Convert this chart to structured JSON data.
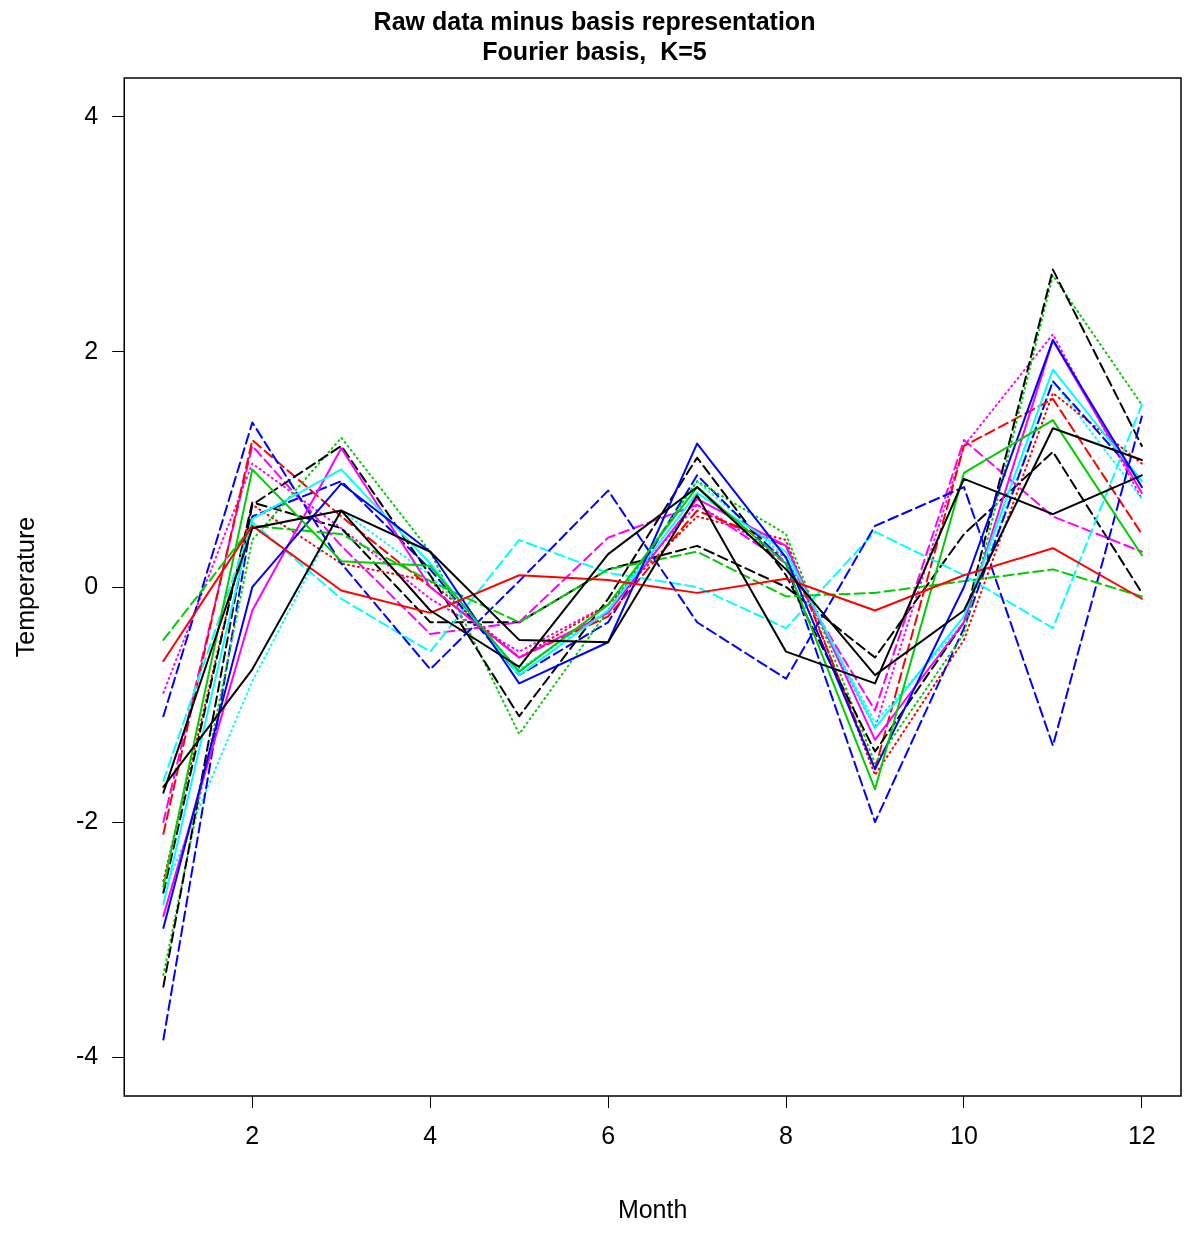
{
  "chart_data": {
    "type": "line",
    "title": "Raw data minus basis representation",
    "subtitle": "Fourier basis,  K=5",
    "xlabel": "Month",
    "ylabel": "Temperature",
    "x": [
      1,
      2,
      3,
      4,
      5,
      6,
      7,
      8,
      9,
      10,
      11,
      12
    ],
    "xlim": [
      0.56,
      12.44
    ],
    "xticks": [
      2,
      4,
      6,
      8,
      10,
      12
    ],
    "ylim": [
      -4.33,
      4.33
    ],
    "yticks": [
      -4,
      -2,
      0,
      2,
      4
    ],
    "grid": false,
    "legend": false,
    "marker": "none",
    "series": [
      {
        "color": "#000000",
        "line_style": "solid",
        "values": [
          -1.75,
          0.5,
          0.65,
          0.3,
          -0.45,
          -0.47,
          0.78,
          -0.55,
          -0.82,
          0.92,
          0.62,
          0.95
        ]
      },
      {
        "color": "#000000",
        "line_style": "solid",
        "values": [
          -1.7,
          -0.7,
          0.65,
          -0.2,
          -0.68,
          0.28,
          0.85,
          0.15,
          -0.75,
          -0.2,
          1.35,
          1.08
        ]
      },
      {
        "color": "#ff0000",
        "line_style": "solid",
        "values": [
          -0.63,
          0.52,
          -0.03,
          -0.22,
          0.1,
          0.06,
          -0.05,
          0.07,
          -0.2,
          0.1,
          0.33,
          -0.1
        ]
      },
      {
        "color": "#00cd00",
        "line_style": "solid",
        "values": [
          -2.55,
          1.0,
          0.22,
          0.18,
          -0.72,
          -0.15,
          0.85,
          0.2,
          -1.72,
          0.97,
          1.42,
          0.27
        ]
      },
      {
        "color": "#0000ff",
        "line_style": "solid",
        "values": [
          -2.9,
          0.0,
          0.88,
          0.3,
          -0.82,
          -0.47,
          1.22,
          0.25,
          -1.55,
          0.0,
          2.1,
          0.85
        ]
      },
      {
        "color": "#00ffff",
        "line_style": "solid",
        "values": [
          -2.7,
          0.58,
          1.0,
          0.2,
          -0.75,
          -0.2,
          0.8,
          0.3,
          -1.2,
          -0.25,
          1.85,
          0.9
        ]
      },
      {
        "color": "#ff00ff",
        "line_style": "solid",
        "values": [
          -2.8,
          -0.2,
          1.18,
          0.0,
          -0.6,
          -0.22,
          0.75,
          0.35,
          -1.3,
          -0.3,
          2.1,
          0.8
        ]
      },
      {
        "color": "#00cd00",
        "line_style": "dashed",
        "values": [
          -0.45,
          0.52,
          0.45,
          0.05,
          -0.3,
          0.15,
          0.3,
          -0.08,
          -0.05,
          0.05,
          0.15,
          -0.08
        ]
      },
      {
        "color": "#0000ff",
        "line_style": "dashed",
        "values": [
          -1.1,
          1.4,
          0.2,
          -0.7,
          0.05,
          0.82,
          -0.3,
          -0.78,
          0.52,
          0.85,
          -1.35,
          1.45
        ]
      },
      {
        "color": "#00ffff",
        "line_style": "dashed",
        "values": [
          -1.65,
          0.55,
          -0.1,
          -0.55,
          0.4,
          0.12,
          0.0,
          -0.35,
          0.47,
          0.1,
          -0.35,
          1.55
        ]
      },
      {
        "color": "#000000",
        "line_style": "dashed",
        "values": [
          -3.4,
          0.7,
          1.2,
          0.1,
          -1.1,
          -0.1,
          1.1,
          0.1,
          -1.4,
          -0.3,
          2.7,
          1.2
        ]
      },
      {
        "color": "#00cd00",
        "line_style": "dotted",
        "values": [
          -3.3,
          0.4,
          1.27,
          0.3,
          -1.25,
          -0.2,
          0.9,
          0.45,
          -1.5,
          -0.4,
          2.65,
          1.55
        ]
      },
      {
        "color": "#ff0000",
        "line_style": "dashed",
        "values": [
          -2.1,
          1.25,
          0.6,
          0.0,
          -0.6,
          -0.25,
          0.65,
          0.35,
          -1.55,
          1.2,
          1.6,
          0.45
        ]
      },
      {
        "color": "#ff00ff",
        "line_style": "dashed",
        "values": [
          -2.0,
          1.2,
          0.35,
          -0.4,
          -0.3,
          0.42,
          0.7,
          0.2,
          -1.05,
          1.25,
          0.6,
          0.3
        ]
      },
      {
        "color": "#0000ff",
        "line_style": "dashed",
        "values": [
          -3.85,
          0.6,
          0.9,
          0.15,
          -0.75,
          -0.3,
          0.95,
          0.2,
          -2.0,
          -0.35,
          1.75,
          0.9
        ]
      },
      {
        "color": "#000000",
        "line_style": "dashed",
        "values": [
          -2.6,
          0.72,
          0.5,
          -0.3,
          -0.3,
          0.15,
          0.35,
          0.0,
          -0.6,
          0.45,
          1.15,
          -0.05
        ]
      },
      {
        "color": "#ff0000",
        "line_style": "dotted",
        "values": [
          -2.5,
          0.7,
          0.2,
          0.05,
          -0.6,
          -0.15,
          0.6,
          0.4,
          -1.6,
          -0.45,
          1.65,
          1.05
        ]
      },
      {
        "color": "#00ffff",
        "line_style": "dotted",
        "values": [
          -2.6,
          -0.8,
          0.65,
          0.1,
          -0.7,
          -0.2,
          0.9,
          0.25,
          -1.15,
          -0.3,
          1.75,
          0.75
        ]
      },
      {
        "color": "#ff00ff",
        "line_style": "dotted",
        "values": [
          -0.9,
          1.05,
          0.5,
          -0.1,
          -0.55,
          -0.15,
          0.7,
          0.25,
          -1.2,
          1.2,
          2.15,
          0.75
        ]
      }
    ]
  }
}
